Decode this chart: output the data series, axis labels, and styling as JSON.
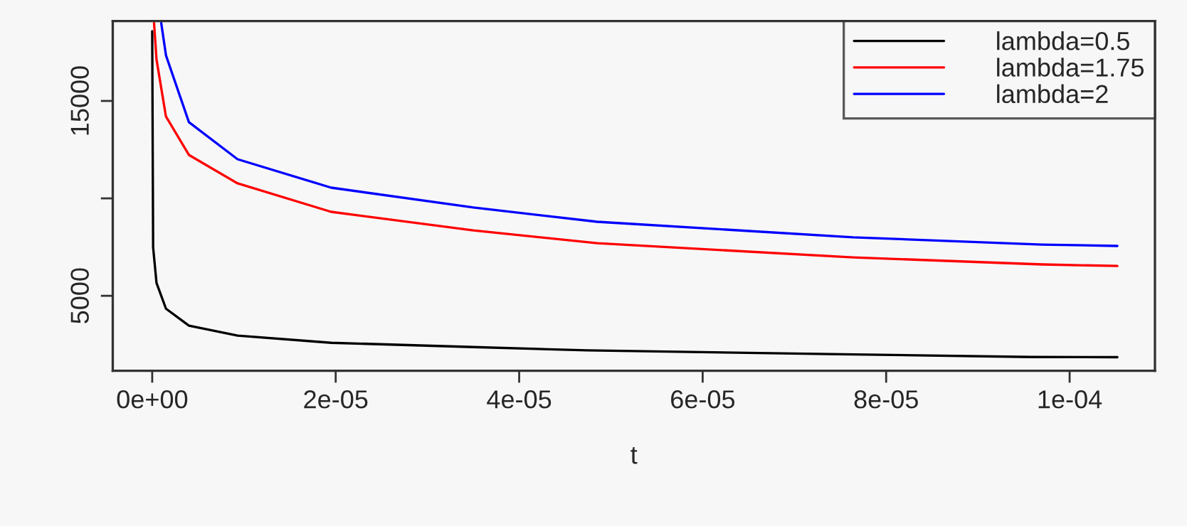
{
  "chart_data": {
    "type": "line",
    "xlabel": "t",
    "xlim": [
      -4.3e-06,
      0.0001093
    ],
    "xticks": [
      {
        "value": 0,
        "label": "0e+00"
      },
      {
        "value": 2e-05,
        "label": "2e-05"
      },
      {
        "value": 4e-05,
        "label": "4e-05"
      },
      {
        "value": 6e-05,
        "label": "6e-05"
      },
      {
        "value": 8e-05,
        "label": "8e-05"
      },
      {
        "value": 0.0001,
        "label": "1e-04"
      }
    ],
    "ylim": [
      1150,
      19100
    ],
    "yticks": [
      5000,
      {
        "value": 10000,
        "label": null
      },
      15000
    ],
    "grid": false,
    "legend": "top right",
    "marker": "none",
    "line_style": "solid",
    "series": [
      {
        "name": "lambda=0.5",
        "color": "#000000",
        "x": [
          0,
          1e-07,
          4.7e-07,
          1.5e-06,
          4e-06,
          9.3e-06,
          1.95e-05,
          3.5e-05,
          4.74e-05,
          7.38e-05,
          9.58e-05,
          0.0001052
        ],
        "values": [
          18580,
          7480,
          5660,
          4340,
          3470,
          2960,
          2590,
          2370,
          2200,
          2010,
          1860,
          1850
        ]
      },
      {
        "name": "lambda=1.75",
        "color": "#ff0000",
        "x": [
          2e-07,
          4.7e-07,
          1.5e-06,
          4e-06,
          9.3e-06,
          1.95e-05,
          3.5e-05,
          4.85e-05,
          7.64e-05,
          9.7e-05,
          0.0001052
        ],
        "values": [
          19000,
          17120,
          14200,
          12230,
          10770,
          9310,
          8360,
          7700,
          6970,
          6610,
          6530
        ]
      },
      {
        "name": "lambda=2",
        "color": "#0000ff",
        "x": [
          9.8e-07,
          1.5e-06,
          4e-06,
          9.3e-06,
          1.95e-05,
          3.5e-05,
          4.85e-05,
          7.64e-05,
          9.7e-05,
          0.0001052
        ],
        "values": [
          19000,
          17340,
          13910,
          12010,
          10550,
          9530,
          8800,
          8000,
          7630,
          7560
        ]
      }
    ]
  }
}
